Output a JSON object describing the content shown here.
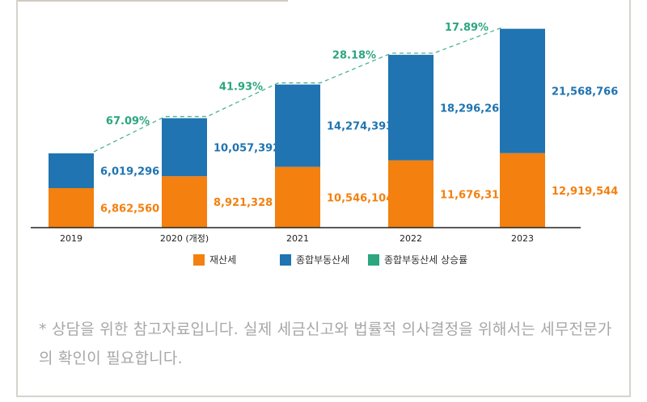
{
  "colors": {
    "property_tax": "#f3800f",
    "comprehensive_tax": "#1f74b1",
    "growth_rate": "#2ba67f",
    "axis": "#222222"
  },
  "chart_data": {
    "type": "bar",
    "stacked": true,
    "categories": [
      "2019",
      "2020 (개정)",
      "2021",
      "2022",
      "2023"
    ],
    "series": [
      {
        "name": "재산세",
        "values": [
          6862560,
          8921328,
          10546104,
          11676313,
          12919544
        ]
      },
      {
        "name": "종합부동산세",
        "values": [
          6019296,
          10057392,
          14274393,
          18296260,
          21568766
        ]
      }
    ],
    "value_labels": {
      "재산세": [
        "6,862,560",
        "8,921,328",
        "10,546,104",
        "11,676,313",
        "12,919,544"
      ],
      "종합부동산세": [
        "6,019,296",
        "10,057,392",
        "14,274,393",
        "18,296,260",
        "21,568,766"
      ]
    },
    "growth_line": {
      "name": "종합부동산세 상승률",
      "labels": [
        "67.09%",
        "41.93%",
        "28.18%",
        "17.89%"
      ],
      "values": [
        67.09,
        41.93,
        28.18,
        17.89
      ]
    },
    "ylim": [
      0,
      35000000
    ],
    "legend_position": "bottom",
    "grid": false
  },
  "legend": [
    {
      "label": "재산세"
    },
    {
      "label": "종합부동산세"
    },
    {
      "label": "종합부동산세 상승률"
    }
  ],
  "note": "* 상담을 위한 참고자료입니다. 실제 세금신고와 법률적 의사결정을 위해서는 세무전문가의 확인이 필요합니다."
}
